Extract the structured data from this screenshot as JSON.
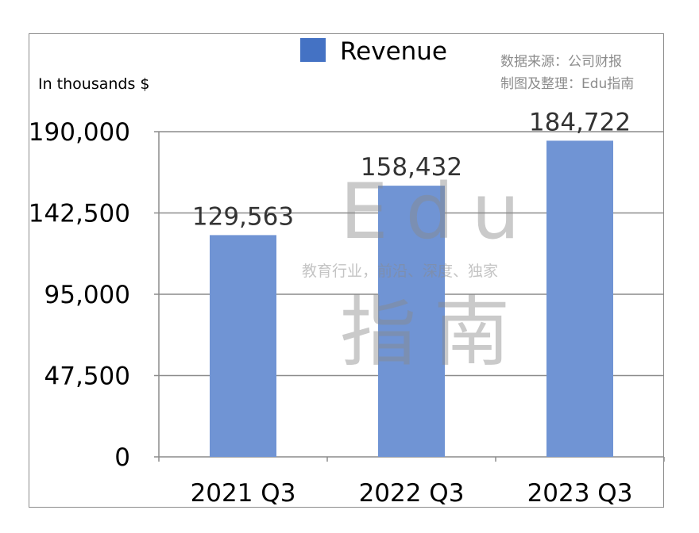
{
  "chart_data": {
    "type": "bar",
    "categories": [
      "2021 Q3",
      "2022 Q3",
      "2023 Q3"
    ],
    "series": [
      {
        "name": "Revenue",
        "values": [
          129563,
          158432,
          184722
        ],
        "color": "#7094d4"
      }
    ],
    "data_labels": [
      "129,563",
      "158,432",
      "184,722"
    ],
    "ylabel": "In thousands $",
    "yticks": [
      {
        "value": 0,
        "label": "0"
      },
      {
        "value": 47500,
        "label": "47,500"
      },
      {
        "value": 95000,
        "label": "95,000"
      },
      {
        "value": 142500,
        "label": "142,500"
      },
      {
        "value": 190000,
        "label": "190,000"
      }
    ],
    "ylim": [
      0,
      190000
    ],
    "grid": true,
    "legend_position": "top-center",
    "legend_swatch_color": "#4472c4"
  },
  "source_note": {
    "line1": "数据来源：公司财报",
    "line2": "制图及整理：Edu指南"
  },
  "watermark": {
    "top": "Edu",
    "tagline": "教育行业，前沿、深度、独家",
    "bottom": "指南"
  }
}
